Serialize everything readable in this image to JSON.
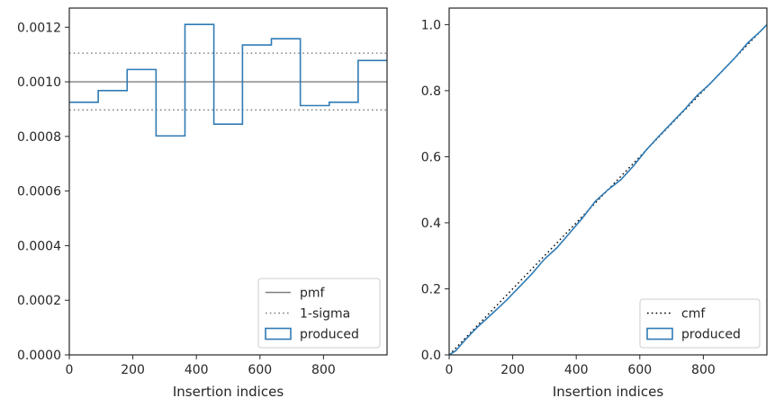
{
  "chart_data": [
    {
      "type": "histogram-step",
      "xlabel": "Insertion indices",
      "ylabel": "",
      "xlim": [
        0,
        1000
      ],
      "ylim": [
        0,
        0.00127
      ],
      "xticks": [
        0,
        200,
        400,
        600,
        800
      ],
      "yticks": [
        0.0,
        0.0002,
        0.0004,
        0.0006,
        0.0008,
        0.001,
        0.0012
      ],
      "ytick_labels": [
        "0.0000",
        "0.0002",
        "0.0004",
        "0.0006",
        "0.0008",
        "0.0010",
        "0.0012"
      ],
      "bin_edges": [
        0,
        91,
        182,
        273,
        364,
        455,
        545,
        636,
        727,
        818,
        909,
        1000
      ],
      "series": [
        {
          "name": "produced",
          "style": "step",
          "color": "#2f7bb5",
          "values": [
            0.000925,
            0.000968,
            0.001045,
            0.000802,
            0.00121,
            0.000845,
            0.001135,
            0.001158,
            0.000913,
            0.000925,
            0.001078
          ]
        }
      ],
      "reference_lines": [
        {
          "name": "pmf",
          "y": 0.001,
          "style": "solid",
          "color": "#7f7f7f"
        },
        {
          "name": "1-sigma",
          "y": 0.001105,
          "style": "dotted",
          "color": "#7f7f7f"
        },
        {
          "name": "",
          "y": 0.000897,
          "style": "dotted",
          "color": "#7f7f7f"
        }
      ],
      "legend": {
        "placement": "lower-right",
        "entries": [
          "pmf",
          "1-sigma",
          "produced"
        ]
      }
    },
    {
      "type": "line",
      "xlabel": "Insertion indices",
      "ylabel": "",
      "xlim": [
        0,
        1000
      ],
      "ylim": [
        0,
        1.05
      ],
      "xticks": [
        0,
        200,
        400,
        600,
        800
      ],
      "yticks": [
        0.0,
        0.2,
        0.4,
        0.6,
        0.8,
        1.0
      ],
      "ytick_labels": [
        "0.0",
        "0.2",
        "0.4",
        "0.6",
        "0.8",
        "1.0"
      ],
      "series": [
        {
          "name": "cmf",
          "style": "dotted",
          "color": "#000000",
          "x": [
            0,
            1000
          ],
          "y": [
            0,
            1.0
          ]
        },
        {
          "name": "produced",
          "style": "solid",
          "color": "#2f7bb5",
          "x": [
            0,
            20,
            50,
            90,
            130,
            180,
            220,
            260,
            300,
            340,
            380,
            420,
            460,
            500,
            540,
            580,
            620,
            660,
            700,
            740,
            780,
            820,
            860,
            900,
            940,
            980,
            1000
          ],
          "y": [
            0.0,
            0.012,
            0.045,
            0.085,
            0.12,
            0.165,
            0.205,
            0.245,
            0.29,
            0.325,
            0.37,
            0.415,
            0.465,
            0.5,
            0.53,
            0.572,
            0.62,
            0.662,
            0.702,
            0.742,
            0.785,
            0.82,
            0.86,
            0.9,
            0.945,
            0.98,
            1.0
          ]
        }
      ],
      "legend": {
        "placement": "lower-right",
        "entries": [
          "cmf",
          "produced"
        ]
      }
    }
  ]
}
